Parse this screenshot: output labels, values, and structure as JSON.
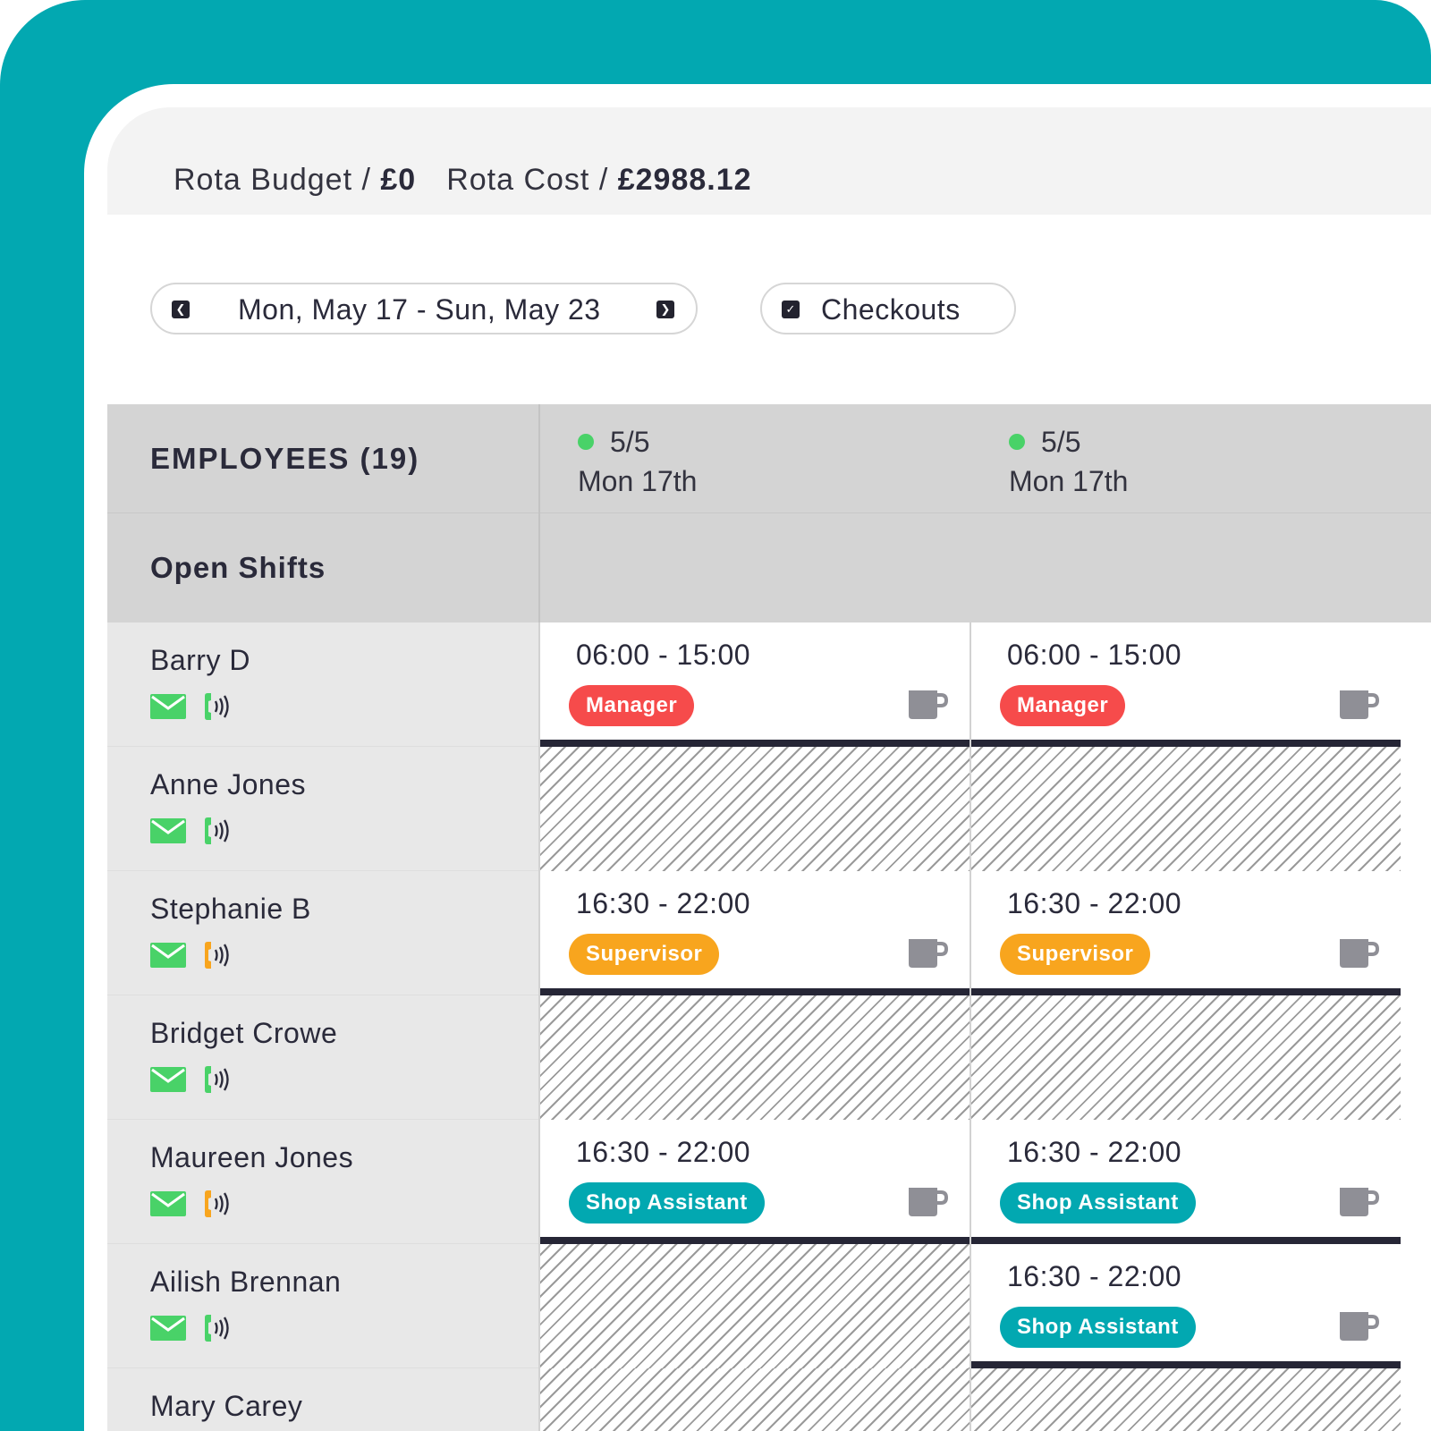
{
  "header": {
    "budget_label": "Rota Budget / ",
    "budget_value": "£0",
    "cost_label": "Rota Cost / ",
    "cost_value": "£2988.12"
  },
  "toolbar": {
    "date_range": "Mon, May 17 - Sun, May 23",
    "checkouts_label": "Checkouts"
  },
  "grid": {
    "employees_header": "EMPLOYEES (19)",
    "open_shifts_label": "Open Shifts",
    "days": [
      {
        "count": "5/5",
        "label": "Mon 17th"
      },
      {
        "count": "5/5",
        "label": "Mon 17th"
      }
    ],
    "employees": [
      {
        "name": "Barry D",
        "phone_color": "#49d268"
      },
      {
        "name": "Anne Jones",
        "phone_color": "#49d268"
      },
      {
        "name": "Stephanie B",
        "phone_color": "#f8a51e"
      },
      {
        "name": "Bridget Crowe",
        "phone_color": "#49d268"
      },
      {
        "name": "Maureen Jones",
        "phone_color": "#f8a51e"
      },
      {
        "name": "Ailish Brennan",
        "phone_color": "#49d268"
      },
      {
        "name": "Mary Carey",
        "phone_color": "#49d268"
      }
    ],
    "shifts": {
      "r0c0": {
        "time": "06:00 - 15:00",
        "role": "Manager"
      },
      "r0c1": {
        "time": "06:00 - 15:00",
        "role": "Manager"
      },
      "r2c0": {
        "time": "16:30 - 22:00",
        "role": "Supervisor"
      },
      "r2c1": {
        "time": "16:30 - 22:00",
        "role": "Supervisor"
      },
      "r4c0": {
        "time": "16:30 - 22:00",
        "role": "Shop Assistant"
      },
      "r4c1": {
        "time": "16:30 - 22:00",
        "role": "Shop Assistant"
      },
      "r5c1": {
        "time": "16:30 - 22:00",
        "role": "Shop Assistant"
      }
    }
  },
  "colors": {
    "brand_teal": "#02a8b1",
    "manager": "#f64b4b",
    "supervisor": "#f8a51e",
    "shop_assistant": "#02a8b1",
    "status_dot": "#49d268",
    "mail_icon": "#49d268"
  },
  "icons": [
    "prev-arrow-icon",
    "next-arrow-icon",
    "checkbox-icon",
    "mail-icon",
    "phone-icon",
    "break-mug-icon",
    "status-dot-icon"
  ]
}
